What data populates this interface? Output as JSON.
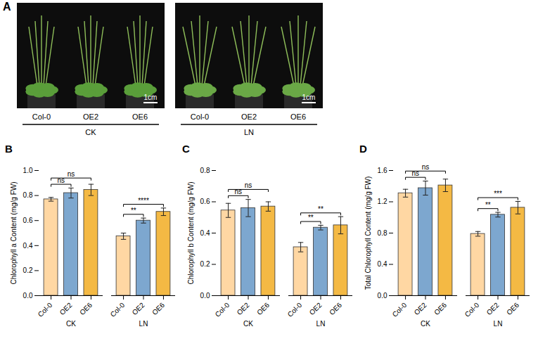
{
  "panel_a": {
    "panel": "A",
    "photos": [
      {
        "condition": "CK",
        "genotypes": [
          "Col-0",
          "OE2",
          "OE6"
        ],
        "scale_bar": "1cm"
      },
      {
        "condition": "LN",
        "genotypes": [
          "Col-0",
          "OE2",
          "OE6"
        ],
        "scale_bar": "1cm"
      }
    ]
  },
  "chart_data": [
    {
      "type": "bar",
      "panel": "B",
      "y_label": "Chlorophyll a Content (mg/g FW)",
      "categories": [
        "Col-0",
        "OE2",
        "OE6"
      ],
      "colors": [
        "#FFD7A3",
        "#7DA7CF",
        "#F4B944"
      ],
      "series": [
        {
          "name": "CK",
          "values": [
            0.77,
            0.82,
            0.845
          ],
          "errors": [
            0.015,
            0.04,
            0.045
          ]
        },
        {
          "name": "LN",
          "values": [
            0.475,
            0.6,
            0.67
          ],
          "errors": [
            0.025,
            0.02,
            0.03
          ]
        }
      ],
      "comparisons": [
        {
          "group": "CK",
          "from": "Col-0",
          "to": "OE2",
          "label": "ns"
        },
        {
          "group": "CK",
          "from": "Col-0",
          "to": "OE6",
          "label": "ns"
        },
        {
          "group": "LN",
          "from": "Col-0",
          "to": "OE2",
          "label": "**"
        },
        {
          "group": "LN",
          "from": "Col-0",
          "to": "OE6",
          "label": "****"
        }
      ],
      "ylim": [
        0,
        1.0
      ],
      "yticks": [
        {
          "value": 0,
          "label": "0.0"
        },
        {
          "value": 0.2,
          "label": "0.2"
        },
        {
          "value": 0.4,
          "label": "0.4"
        },
        {
          "value": 0.6,
          "label": "0.6"
        },
        {
          "value": 0.8,
          "label": "0.8"
        },
        {
          "value": 1.0,
          "label": "1.0"
        }
      ]
    },
    {
      "type": "bar",
      "panel": "C",
      "y_label": "Chlorophyll b Content (mg/g FW)",
      "categories": [
        "Col-0",
        "OE2",
        "OE6"
      ],
      "colors": [
        "#FFD7A3",
        "#7DA7CF",
        "#F4B944"
      ],
      "series": [
        {
          "name": "CK",
          "values": [
            0.545,
            0.56,
            0.57
          ],
          "errors": [
            0.045,
            0.055,
            0.03
          ]
        },
        {
          "name": "LN",
          "values": [
            0.31,
            0.435,
            0.45
          ],
          "errors": [
            0.03,
            0.015,
            0.055
          ]
        }
      ],
      "comparisons": [
        {
          "group": "CK",
          "from": "Col-0",
          "to": "OE2",
          "label": "ns"
        },
        {
          "group": "CK",
          "from": "Col-0",
          "to": "OE6",
          "label": "ns"
        },
        {
          "group": "LN",
          "from": "Col-0",
          "to": "OE2",
          "label": "**"
        },
        {
          "group": "LN",
          "from": "Col-0",
          "to": "OE6",
          "label": "**"
        }
      ],
      "ylim": [
        0,
        0.8
      ],
      "yticks": [
        {
          "value": 0,
          "label": "0.0"
        },
        {
          "value": 0.2,
          "label": "0.2"
        },
        {
          "value": 0.4,
          "label": "0.4"
        },
        {
          "value": 0.6,
          "label": "0.6"
        },
        {
          "value": 0.8,
          "label": "0.8"
        }
      ]
    },
    {
      "type": "bar",
      "panel": "D",
      "y_label": "Total Chlorophyll Content (mg/g FW)",
      "categories": [
        "Col-0",
        "OE2",
        "OE6"
      ],
      "colors": [
        "#FFD7A3",
        "#7DA7CF",
        "#F4B944"
      ],
      "series": [
        {
          "name": "CK",
          "values": [
            1.31,
            1.375,
            1.41
          ],
          "errors": [
            0.05,
            0.09,
            0.08
          ]
        },
        {
          "name": "LN",
          "values": [
            0.79,
            1.035,
            1.125
          ],
          "errors": [
            0.03,
            0.03,
            0.08
          ]
        }
      ],
      "comparisons": [
        {
          "group": "CK",
          "from": "Col-0",
          "to": "OE2",
          "label": "ns"
        },
        {
          "group": "CK",
          "from": "Col-0",
          "to": "OE6",
          "label": "ns"
        },
        {
          "group": "LN",
          "from": "Col-0",
          "to": "OE2",
          "label": "**"
        },
        {
          "group": "LN",
          "from": "Col-0",
          "to": "OE6",
          "label": "***"
        }
      ],
      "ylim": [
        0,
        1.6
      ],
      "yticks": [
        {
          "value": 0,
          "label": "0.0"
        },
        {
          "value": 0.4,
          "label": "0.4"
        },
        {
          "value": 0.8,
          "label": "0.8"
        },
        {
          "value": 1.2,
          "label": "1.2"
        },
        {
          "value": 1.6,
          "label": "1.6"
        }
      ]
    }
  ]
}
